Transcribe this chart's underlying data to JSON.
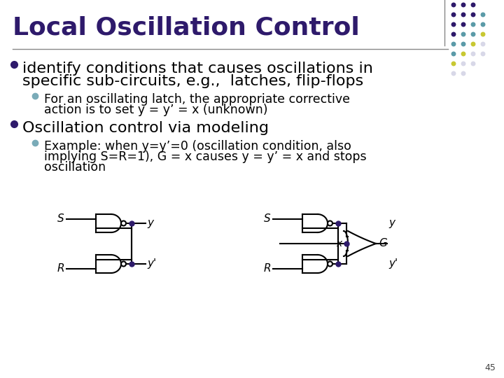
{
  "title": "Local Oscillation Control",
  "title_color": "#2E1A6B",
  "title_fontsize": 26,
  "bg_color": "#FFFFFF",
  "slide_number": "45",
  "bullet1_line1": "identify conditions that causes oscillations in",
  "bullet1_line2": "specific sub-circuits, e.g.,  latches, flip-flops",
  "bullet1_color": "#000000",
  "bullet1_fontsize": 16,
  "bullet1_marker_color": "#2E1A6B",
  "sub_bullet1_line1": "For an oscillating latch, the appropriate corrective",
  "sub_bullet1_line2": "action is to set y = y’ = x (unknown)",
  "sub_bullet1_color": "#000000",
  "sub_bullet1_fontsize": 12.5,
  "sub_bullet1_marker_color": "#7AABB8",
  "bullet2": "Oscillation control via modeling",
  "bullet2_color": "#000000",
  "bullet2_fontsize": 16,
  "bullet2_marker_color": "#2E1A6B",
  "sub_bullet2_line1": "Example: when y=y’=0 (oscillation condition, also",
  "sub_bullet2_line2": "implying S=R=1), G = x causes y = y’ = x and stops",
  "sub_bullet2_line3": "oscillation",
  "sub_bullet2_color": "#000000",
  "sub_bullet2_fontsize": 12.5,
  "sub_bullet2_marker_color": "#7AABB8",
  "separator_color": "#888888",
  "circuit_color": "#000000",
  "dot_dot_color": "#2E1A6B",
  "dot_colors_rows": [
    [
      "#2E1A6B",
      "#2E1A6B",
      "#2E1A6B"
    ],
    [
      "#2E1A6B",
      "#2E1A6B",
      "#2E1A6B",
      "#5B9BA8"
    ],
    [
      "#2E1A6B",
      "#2E1A6B",
      "#5B9BA8",
      "#5B9BA8"
    ],
    [
      "#2E1A6B",
      "#5B9BA8",
      "#5B9BA8",
      "#C8C832"
    ],
    [
      "#5B9BA8",
      "#5B9BA8",
      "#C8C832",
      "#D8D8E8"
    ],
    [
      "#5B9BA8",
      "#C8C832",
      "#D8D8E8",
      "#D8D8E8"
    ],
    [
      "#C8C832",
      "#D8D8E8",
      "#D8D8E8"
    ],
    [
      "#D8D8E8",
      "#D8D8E8"
    ]
  ]
}
